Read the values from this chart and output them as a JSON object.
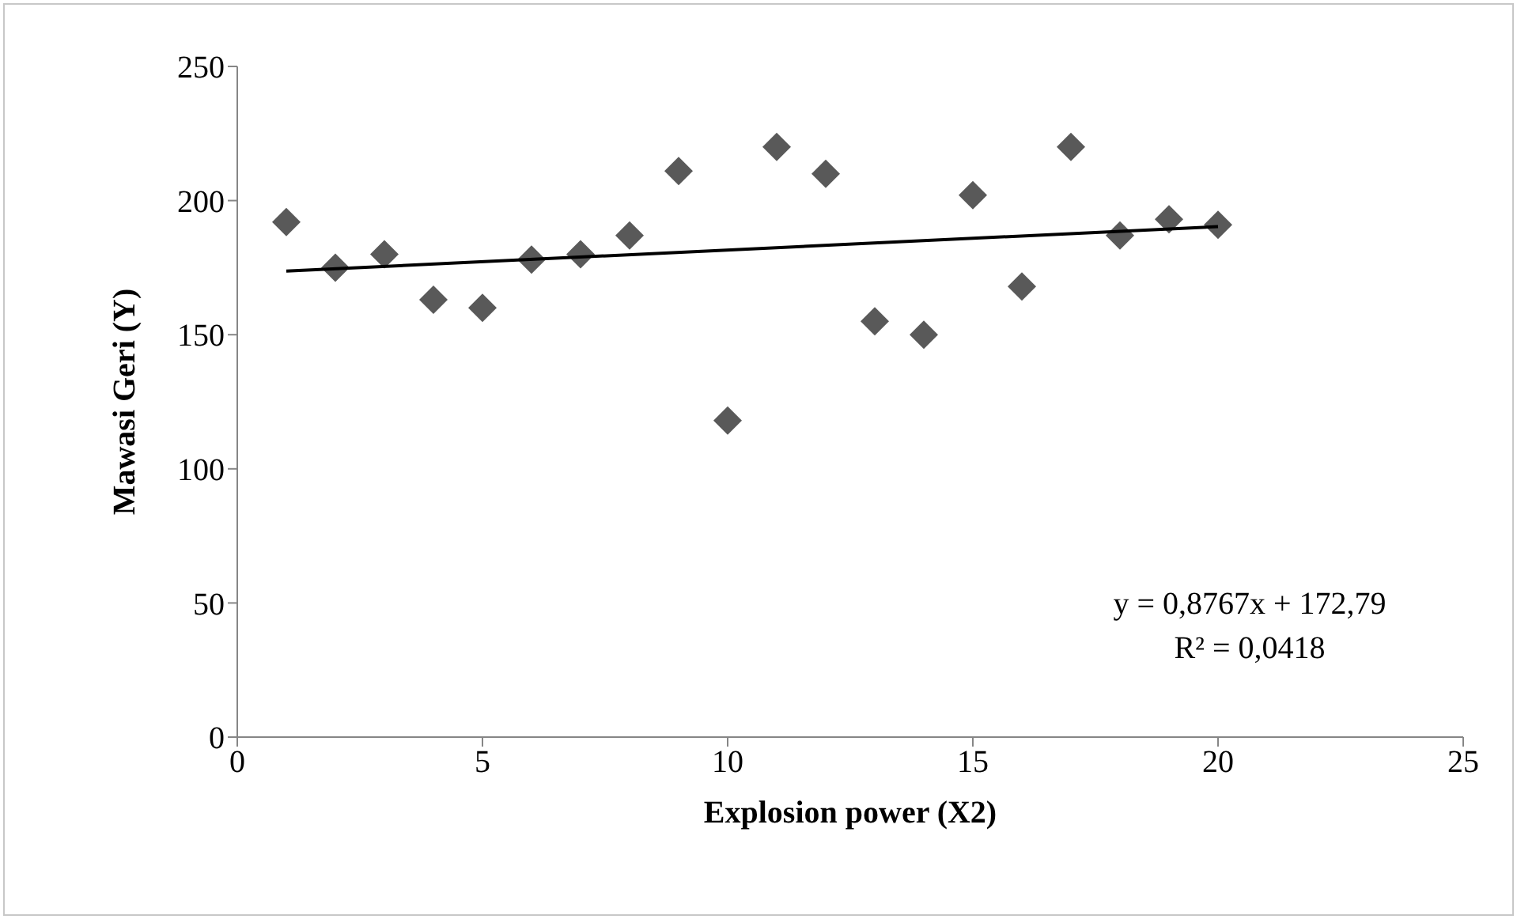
{
  "chart_data": {
    "type": "scatter",
    "xlabel": "Explosion power (X2)",
    "ylabel": "Mawasi Geri (Y)",
    "xlim": [
      0,
      25
    ],
    "xticks": [
      0,
      5,
      10,
      15,
      20,
      25
    ],
    "ylim": [
      0,
      250
    ],
    "yticks": [
      0,
      50,
      100,
      150,
      200,
      250
    ],
    "annotations": [
      "y = 0,8767x + 172,79",
      "R² = 0,0418"
    ],
    "series": [
      {
        "type": "scatter",
        "marker": "diamond",
        "color": "#595959",
        "x": [
          1,
          2,
          3,
          4,
          5,
          6,
          7,
          8,
          9,
          10,
          11,
          12,
          13,
          14,
          15,
          16,
          17,
          18,
          19,
          20
        ],
        "values": [
          192,
          175,
          180,
          163,
          160,
          178,
          180,
          187,
          211,
          118,
          220,
          210,
          155,
          150,
          202,
          168,
          220,
          187,
          193,
          191
        ]
      },
      {
        "type": "line",
        "marker": "none",
        "color": "#000000",
        "x": [
          1,
          20
        ],
        "values": [
          173.7,
          190.3
        ]
      }
    ]
  }
}
